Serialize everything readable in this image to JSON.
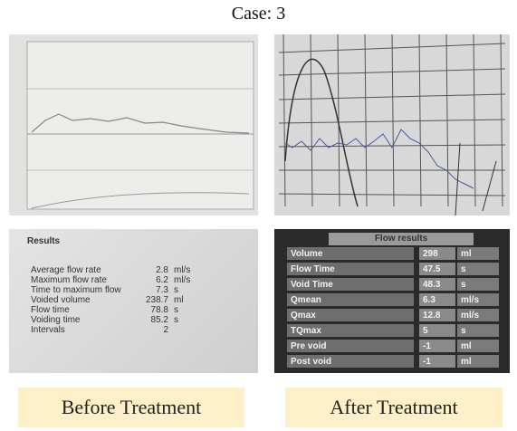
{
  "title": "Case: 3",
  "panels": [
    {
      "caption": "Before Treatment",
      "results": {
        "heading": "Results",
        "rows": [
          {
            "label": "Average flow rate",
            "value": 2.8,
            "unit": "ml/s"
          },
          {
            "label": "Maximum flow rate",
            "value": 6.2,
            "unit": "ml/s"
          },
          {
            "label": "Time to maximum flow",
            "value": 7.3,
            "unit": "s"
          },
          {
            "label": "Voided volume",
            "value": 238.7,
            "unit": "ml"
          },
          {
            "label": "Flow time",
            "value": 78.8,
            "unit": "s"
          },
          {
            "label": "Voiding time",
            "value": 85.2,
            "unit": "s"
          },
          {
            "label": "Intervals",
            "value": 2
          }
        ]
      }
    },
    {
      "caption": "After Treatment",
      "results": {
        "heading": "Flow results",
        "rows": [
          {
            "label": "Volume",
            "value": 298,
            "unit": "ml"
          },
          {
            "label": "Flow Time",
            "value": 47.5,
            "unit": "s"
          },
          {
            "label": "Void Time",
            "value": 48.3,
            "unit": "s"
          },
          {
            "label": "Qmean",
            "value": 6.3,
            "unit": "ml/s"
          },
          {
            "label": "Qmax",
            "value": 12.8,
            "unit": "ml/s"
          },
          {
            "label": "TQmax",
            "value": 5,
            "unit": "s"
          },
          {
            "label": "Pre void",
            "value": -1,
            "unit": "ml"
          },
          {
            "label": "Post void",
            "value": -1,
            "unit": "ml"
          }
        ]
      }
    }
  ]
}
